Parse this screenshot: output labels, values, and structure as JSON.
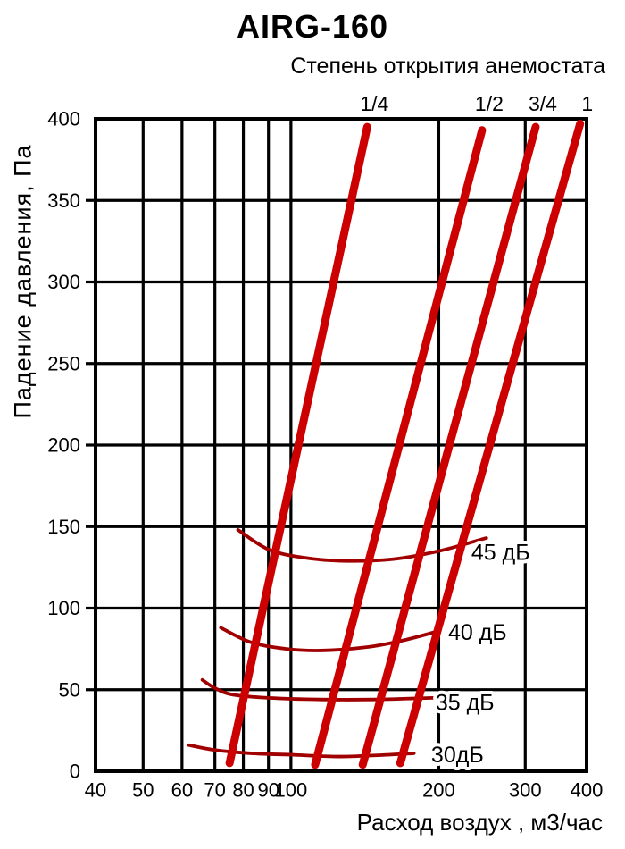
{
  "chart_data": {
    "type": "line",
    "title": "AIRG-160",
    "subtitle": "Степень открытия анемостата",
    "xlabel": "Расход воздух , м3/час",
    "ylabel": "Падение давления, Па",
    "x_scale": "log",
    "xlim": [
      40,
      400
    ],
    "x_ticks": [
      40,
      50,
      60,
      70,
      80,
      90,
      100,
      200,
      300,
      400
    ],
    "ylim": [
      0,
      400
    ],
    "y_ticks": [
      0,
      50,
      100,
      150,
      200,
      250,
      300,
      350,
      400
    ],
    "grid": true,
    "legend_position": "none",
    "colors": {
      "opening_line": "#cc0000",
      "noise_curve": "#a00000",
      "axis": "#000000",
      "background": "#ffffff"
    },
    "opening_lines": [
      {
        "label": "1/4",
        "points": [
          [
            75,
            5
          ],
          [
            143,
            395
          ]
        ]
      },
      {
        "label": "1/2",
        "points": [
          [
            112,
            4
          ],
          [
            245,
            393
          ]
        ]
      },
      {
        "label": "3/4",
        "points": [
          [
            140,
            4
          ],
          [
            315,
            395
          ]
        ]
      },
      {
        "label": "1",
        "points": [
          [
            167,
            5
          ],
          [
            388,
            397
          ]
        ]
      }
    ],
    "noise_curves": [
      {
        "label": "45 дБ",
        "label_pos": [
          233,
          134
        ],
        "points": [
          [
            78,
            148
          ],
          [
            90,
            136
          ],
          [
            106,
            131
          ],
          [
            127,
            129
          ],
          [
            161,
            130
          ],
          [
            200,
            135
          ],
          [
            250,
            143
          ]
        ]
      },
      {
        "label": "40 дБ",
        "label_pos": [
          209,
          85
        ],
        "points": [
          [
            72,
            88
          ],
          [
            83,
            79
          ],
          [
            98,
            75
          ],
          [
            115,
            74
          ],
          [
            142,
            76
          ],
          [
            168,
            80
          ],
          [
            200,
            86
          ]
        ]
      },
      {
        "label": "35 дБ",
        "label_pos": [
          197,
          42
        ],
        "points": [
          [
            66,
            56
          ],
          [
            70,
            51
          ],
          [
            76,
            47
          ],
          [
            90,
            45
          ],
          [
            115,
            44
          ],
          [
            148,
            44
          ],
          [
            195,
            45
          ]
        ]
      },
      {
        "label": "30дБ",
        "label_pos": [
          193,
          10
        ],
        "points": [
          [
            62,
            16
          ],
          [
            70,
            13
          ],
          [
            83,
            11
          ],
          [
            102,
            10
          ],
          [
            125,
            9
          ],
          [
            155,
            10
          ],
          [
            178,
            11
          ]
        ]
      }
    ]
  }
}
